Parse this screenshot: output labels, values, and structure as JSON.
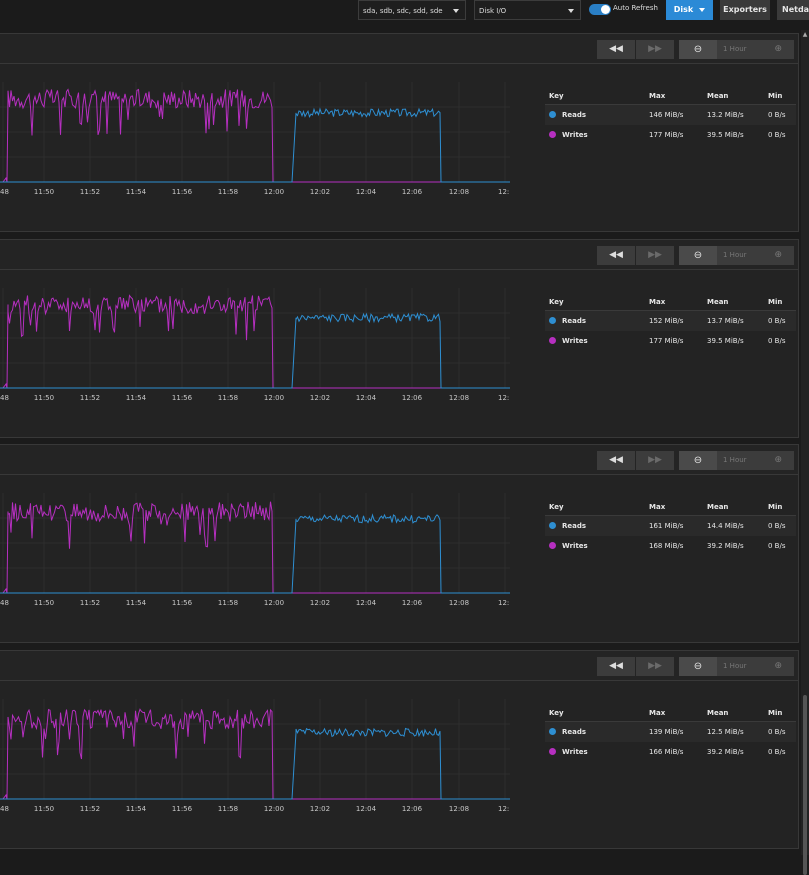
{
  "topbar": {
    "devices_select": "sda, sdb, sdc, sdd, sde",
    "metric_select": "Disk I/O",
    "auto_refresh_label": "Auto Refresh",
    "auto_refresh_on": true,
    "disk_button": "Disk",
    "exporters_button": "Exporters",
    "netdata_button": "Netdata"
  },
  "colors": {
    "reads": "#2e8fd2",
    "writes": "#b62fc0",
    "accent": "#2b8ad6"
  },
  "time_range_label": "1 Hour",
  "legend_headers": {
    "key": "Key",
    "max": "Max",
    "mean": "Mean",
    "min": "Min"
  },
  "x_ticks": [
    "48",
    "11:50",
    "11:52",
    "11:54",
    "11:56",
    "11:58",
    "12:00",
    "12:02",
    "12:04",
    "12:06",
    "12:08",
    "12:"
  ],
  "panels": [
    {
      "reads": {
        "name": "Reads",
        "max": "146 MiB/s",
        "mean": "13.2 MiB/s",
        "min": "0 B/s"
      },
      "writes": {
        "name": "Writes",
        "max": "177 MiB/s",
        "mean": "39.5 MiB/s",
        "min": "0 B/s"
      }
    },
    {
      "reads": {
        "name": "Reads",
        "max": "152 MiB/s",
        "mean": "13.7 MiB/s",
        "min": "0 B/s"
      },
      "writes": {
        "name": "Writes",
        "max": "177 MiB/s",
        "mean": "39.5 MiB/s",
        "min": "0 B/s"
      }
    },
    {
      "reads": {
        "name": "Reads",
        "max": "161 MiB/s",
        "mean": "14.4 MiB/s",
        "min": "0 B/s"
      },
      "writes": {
        "name": "Writes",
        "max": "168 MiB/s",
        "mean": "39.2 MiB/s",
        "min": "0 B/s"
      }
    },
    {
      "reads": {
        "name": "Reads",
        "max": "139 MiB/s",
        "mean": "12.5 MiB/s",
        "min": "0 B/s"
      },
      "writes": {
        "name": "Writes",
        "max": "166 MiB/s",
        "mean": "39.2 MiB/s",
        "min": "0 B/s"
      }
    }
  ],
  "chart_data": [
    {
      "type": "line",
      "x_ticks": [
        "48",
        "11:50",
        "11:52",
        "11:54",
        "11:56",
        "11:58",
        "12:00",
        "12:02",
        "12:04",
        "12:06",
        "12:08",
        "12:"
      ],
      "series": [
        {
          "name": "Writes",
          "values": [
            0,
            165,
            170,
            160,
            168,
            172,
            0,
            0,
            0,
            0,
            0,
            0
          ]
        },
        {
          "name": "Reads",
          "values": [
            0,
            0,
            0,
            0,
            0,
            0,
            0,
            135,
            140,
            138,
            140,
            0
          ]
        }
      ]
    },
    {
      "type": "line",
      "x_ticks": [
        "48",
        "11:50",
        "11:52",
        "11:54",
        "11:56",
        "11:58",
        "12:00",
        "12:02",
        "12:04",
        "12:06",
        "12:08",
        "12:"
      ],
      "series": [
        {
          "name": "Writes",
          "values": [
            0,
            165,
            170,
            160,
            168,
            172,
            0,
            0,
            0,
            0,
            0,
            0
          ]
        },
        {
          "name": "Reads",
          "values": [
            0,
            0,
            0,
            0,
            0,
            0,
            0,
            138,
            142,
            140,
            142,
            0
          ]
        }
      ]
    },
    {
      "type": "line",
      "x_ticks": [
        "48",
        "11:50",
        "11:52",
        "11:54",
        "11:56",
        "11:58",
        "12:00",
        "12:02",
        "12:04",
        "12:06",
        "12:08",
        "12:"
      ],
      "series": [
        {
          "name": "Writes",
          "values": [
            0,
            162,
            165,
            158,
            164,
            166,
            0,
            0,
            0,
            0,
            0,
            0
          ]
        },
        {
          "name": "Reads",
          "values": [
            0,
            0,
            0,
            0,
            0,
            0,
            0,
            145,
            150,
            148,
            150,
            0
          ]
        }
      ]
    },
    {
      "type": "line",
      "x_ticks": [
        "48",
        "11:50",
        "11:52",
        "11:54",
        "11:56",
        "11:58",
        "12:00",
        "12:02",
        "12:04",
        "12:06",
        "12:08",
        "12:"
      ],
      "series": [
        {
          "name": "Writes",
          "values": [
            0,
            160,
            162,
            155,
            160,
            164,
            0,
            0,
            0,
            0,
            0,
            0
          ]
        },
        {
          "name": "Reads",
          "values": [
            0,
            0,
            0,
            0,
            0,
            0,
            0,
            130,
            135,
            132,
            135,
            0
          ]
        }
      ]
    }
  ]
}
